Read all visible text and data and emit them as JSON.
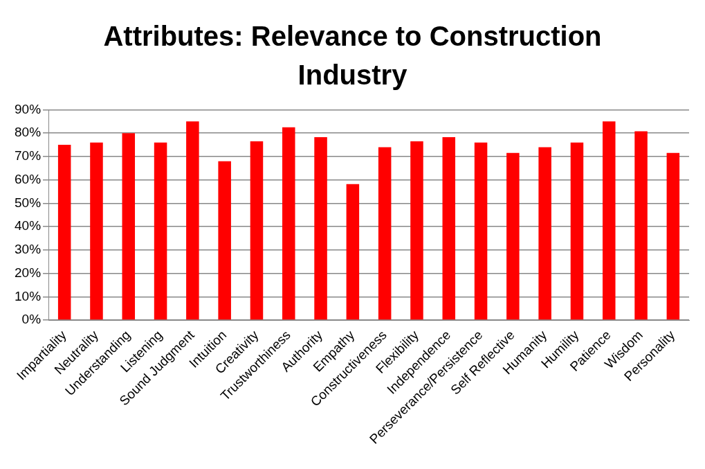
{
  "chart_data": {
    "type": "bar",
    "title": "Attributes: Relevance to Construction Industry",
    "categories": [
      "Impartiality",
      "Neutrality",
      "Understanding",
      "Listening",
      "Sound Judgment",
      "Intuition",
      "Creativity",
      "Trustworthiness",
      "Authority",
      "Empathy",
      "Constructiveness",
      "Flexibility",
      "Independence",
      "Perseverance/Persistence",
      "Self Reflective",
      "Humanity",
      "Humility",
      "Patience",
      "Wisdom",
      "Personality"
    ],
    "values": [
      75,
      76,
      80,
      76,
      85,
      68,
      76.5,
      82.5,
      78.3,
      58.2,
      74,
      76.5,
      78.3,
      76,
      71.5,
      74,
      76,
      85,
      80.8,
      71.5
    ],
    "color": "#ff0000",
    "ylim": [
      0,
      90
    ],
    "yticks": [
      {
        "value": 0,
        "label": "0%"
      },
      {
        "value": 10,
        "label": "10%"
      },
      {
        "value": 20,
        "label": "20%"
      },
      {
        "value": 30,
        "label": "30%"
      },
      {
        "value": 40,
        "label": "40%"
      },
      {
        "value": 50,
        "label": "50%"
      },
      {
        "value": 60,
        "label": "60%"
      },
      {
        "value": 70,
        "label": "70%"
      },
      {
        "value": 80,
        "label": "80%"
      },
      {
        "value": 90,
        "label": "90%"
      }
    ],
    "grid": "y",
    "legend": false
  }
}
